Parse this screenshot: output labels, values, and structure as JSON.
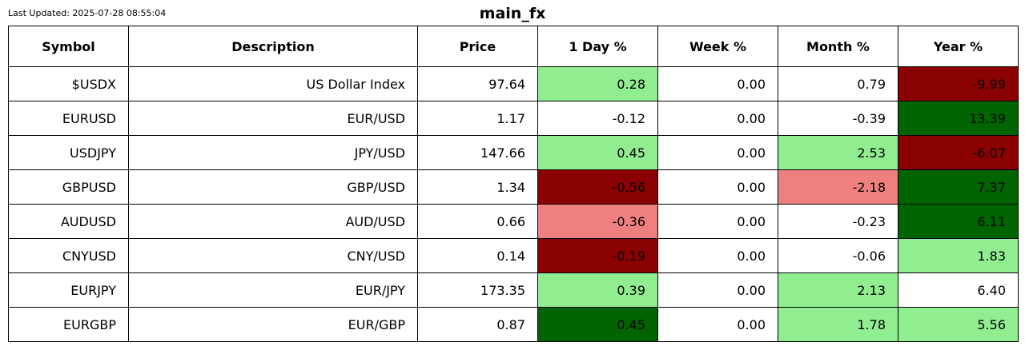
{
  "last_updated": "Last Updated: 2025-07-28 08:55:04",
  "title": "main_fx",
  "colors": {
    "strong_up": "#006400",
    "mild_up": "#90ee90",
    "mild_down": "#f08080",
    "strong_down": "#8b0000",
    "neutral": "#ffffff"
  },
  "chart_data": {
    "type": "table",
    "title": "main_fx",
    "columns": [
      "Symbol",
      "Description",
      "Price",
      "1 Day %",
      "Week %",
      "Month %",
      "Year %"
    ],
    "rows": [
      {
        "cells": [
          "$USDX",
          "US Dollar Index",
          "97.64",
          "0.28",
          "0.00",
          "0.79",
          "-9.99"
        ],
        "shades": [
          "neutral",
          "neutral",
          "neutral",
          "mild_up",
          "neutral",
          "neutral",
          "strong_down"
        ]
      },
      {
        "cells": [
          "EURUSD",
          "EUR/USD",
          "1.17",
          "-0.12",
          "0.00",
          "-0.39",
          "13.39"
        ],
        "shades": [
          "neutral",
          "neutral",
          "neutral",
          "neutral",
          "neutral",
          "neutral",
          "strong_up"
        ]
      },
      {
        "cells": [
          "USDJPY",
          "JPY/USD",
          "147.66",
          "0.45",
          "0.00",
          "2.53",
          "-6.07"
        ],
        "shades": [
          "neutral",
          "neutral",
          "neutral",
          "mild_up",
          "neutral",
          "mild_up",
          "strong_down"
        ]
      },
      {
        "cells": [
          "GBPUSD",
          "GBP/USD",
          "1.34",
          "-0.56",
          "0.00",
          "-2.18",
          "7.37"
        ],
        "shades": [
          "neutral",
          "neutral",
          "neutral",
          "strong_down",
          "neutral",
          "mild_down",
          "strong_up"
        ]
      },
      {
        "cells": [
          "AUDUSD",
          "AUD/USD",
          "0.66",
          "-0.36",
          "0.00",
          "-0.23",
          "6.11"
        ],
        "shades": [
          "neutral",
          "neutral",
          "neutral",
          "mild_down",
          "neutral",
          "neutral",
          "strong_up"
        ]
      },
      {
        "cells": [
          "CNYUSD",
          "CNY/USD",
          "0.14",
          "-0.19",
          "0.00",
          "-0.06",
          "1.83"
        ],
        "shades": [
          "neutral",
          "neutral",
          "neutral",
          "strong_down",
          "neutral",
          "neutral",
          "mild_up"
        ]
      },
      {
        "cells": [
          "EURJPY",
          "EUR/JPY",
          "173.35",
          "0.39",
          "0.00",
          "2.13",
          "6.40"
        ],
        "shades": [
          "neutral",
          "neutral",
          "neutral",
          "mild_up",
          "neutral",
          "mild_up",
          "neutral"
        ]
      },
      {
        "cells": [
          "EURGBP",
          "EUR/GBP",
          "0.87",
          "0.45",
          "0.00",
          "1.78",
          "5.56"
        ],
        "shades": [
          "neutral",
          "neutral",
          "neutral",
          "strong_up",
          "neutral",
          "mild_up",
          "mild_up"
        ]
      }
    ]
  }
}
